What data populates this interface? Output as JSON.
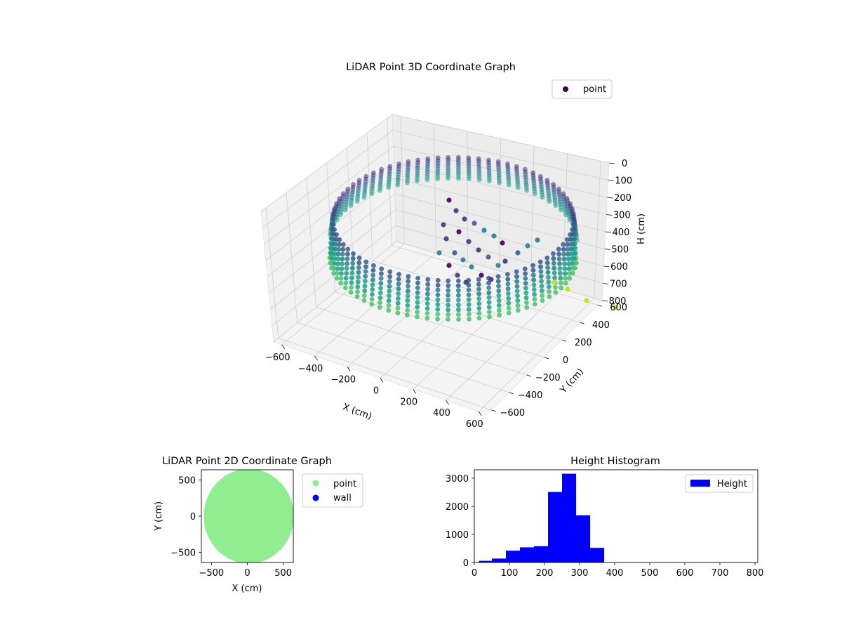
{
  "chart_data": [
    {
      "type": "scatter3d",
      "title": "LiDAR Point 3D Coordinate Graph",
      "xlabel": "X (cm)",
      "ylabel": "Y (cm)",
      "zlabel": "H (cm)",
      "xticks": [
        -600,
        -400,
        -200,
        0,
        200,
        400,
        600
      ],
      "yticks": [
        -600,
        -400,
        -200,
        0,
        200,
        400,
        600
      ],
      "zticks": [
        0,
        100,
        200,
        300,
        400,
        500,
        600,
        700,
        800
      ],
      "xlim": [
        -650,
        650
      ],
      "ylim": [
        -650,
        650
      ],
      "zlim": [
        800,
        0
      ],
      "colormap": "viridis",
      "legend": [
        {
          "name": "point",
          "color": "#440154"
        }
      ],
      "legend_position": "top-right",
      "grid": true
    },
    {
      "type": "scatter",
      "title": "LiDAR Point 2D Coordinate Graph",
      "xlabel": "X (cm)",
      "ylabel": "Y (cm)",
      "xticks": [
        -500,
        0,
        500
      ],
      "yticks": [
        500,
        0,
        -500
      ],
      "xlim": [
        -640,
        640
      ],
      "ylim": [
        -640,
        640
      ],
      "series": [
        {
          "name": "point",
          "color": "#90ee90"
        },
        {
          "name": "wall",
          "color": "#0000ff"
        }
      ],
      "legend_position": "outside-right"
    },
    {
      "type": "bar",
      "title": "Height Histogram",
      "xticks": [
        0,
        100,
        200,
        300,
        400,
        500,
        600,
        700,
        800
      ],
      "yticks": [
        0,
        1000,
        2000,
        3000
      ],
      "xlim": [
        0,
        808
      ],
      "ylim": [
        0,
        3300
      ],
      "bins": [
        {
          "x0": 13,
          "x1": 50,
          "value": 60
        },
        {
          "x0": 50,
          "x1": 90,
          "value": 140
        },
        {
          "x0": 90,
          "x1": 130,
          "value": 420
        },
        {
          "x0": 130,
          "x1": 170,
          "value": 540
        },
        {
          "x0": 170,
          "x1": 210,
          "value": 580
        },
        {
          "x0": 210,
          "x1": 250,
          "value": 2510
        },
        {
          "x0": 250,
          "x1": 290,
          "value": 3160
        },
        {
          "x0": 290,
          "x1": 330,
          "value": 1680
        },
        {
          "x0": 330,
          "x1": 370,
          "value": 520
        }
      ],
      "series": [
        {
          "name": "Height",
          "color": "#0000ff"
        }
      ],
      "legend_position": "top-right"
    }
  ]
}
